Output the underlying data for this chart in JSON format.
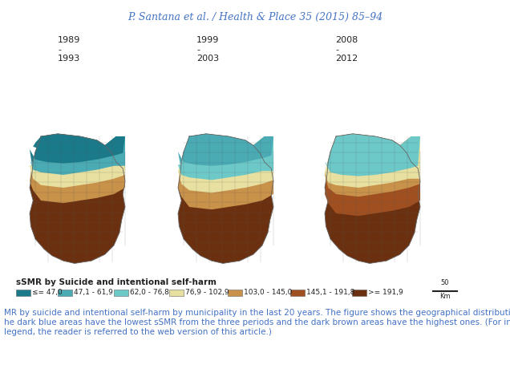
{
  "title": "P. Santana et al. / Health & Place 35 (2015) 85–94",
  "title_color": "#4472c4",
  "title_fontsize": 9,
  "period_labels": [
    "1989\n-\n1993",
    "1999\n-\n2003",
    "2008\n-\n2012"
  ],
  "legend_title": "sSMR by Suicide and intentional self-harm",
  "legend_items": [
    {
      "label": "≤= 47,0",
      "color": "#1a7a8a"
    },
    {
      "label": "47,1 - 61,9",
      "color": "#4aabb5"
    },
    {
      "label": "62,0 - 76,8",
      "color": "#6dc8c8"
    },
    {
      "label": "76,9 - 102,9",
      "color": "#e8e0a0"
    },
    {
      "label": "103,0 - 145,0",
      "color": "#c8924a"
    },
    {
      "label": "145,1 - 191,8",
      "color": "#a05020"
    },
    {
      "label": ">= 191,9",
      "color": "#6b3010"
    }
  ],
  "caption_text": "MR by suicide and intentional self-harm by municipality in the last 20 years. The figure shows the geographical distribution of sSMR, us\nhe dark blue areas have the lowest sSMR from the three periods and the dark brown areas have the highest ones. (For interpretation of\nlegend, the reader is referred to the web version of this article.)",
  "caption_color": "#4472c4",
  "caption_fontsize": 7.5,
  "background_color": "#ffffff",
  "scale_bar_label": "50\n——Km"
}
